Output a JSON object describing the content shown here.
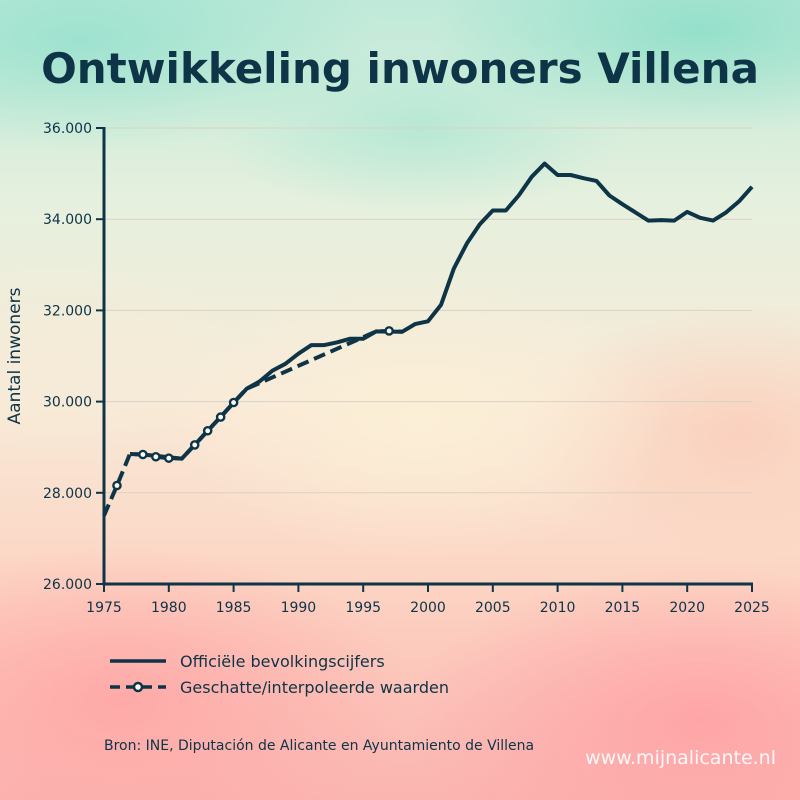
{
  "title": "Ontwikkeling inwoners Villena",
  "source": "Bron: INE, Diputación de Alicante en Ayuntamiento de Villena",
  "watermark": "www.mijnalicante.nl",
  "colors": {
    "line": "#0d3447",
    "marker_fill": "#ffffff",
    "grid": "#d9d2c4"
  },
  "chart_data": {
    "type": "line",
    "title": "Ontwikkeling inwoners Villena",
    "xlabel": "",
    "ylabel": "Aantal inwoners",
    "xlim": [
      1975,
      2025
    ],
    "ylim": [
      26000,
      36000
    ],
    "xticks": [
      1975,
      1980,
      1985,
      1990,
      1995,
      2000,
      2005,
      2010,
      2015,
      2020,
      2025
    ],
    "yticks": [
      26000,
      28000,
      30000,
      32000,
      34000,
      36000
    ],
    "ytick_labels": [
      "26.000",
      "28.000",
      "30.000",
      "32.000",
      "34.000",
      "36.000"
    ],
    "grid": "horizontal",
    "legend_position": "bottom",
    "series": [
      {
        "name": "Officiële bevolkingscijfers",
        "style": "solid",
        "x": [
          1977,
          1978,
          1981,
          1982,
          1986,
          1987,
          1988,
          1989,
          1990,
          1991,
          1992,
          1993,
          1994,
          1995,
          1996,
          1998,
          1999,
          2000,
          2001,
          2002,
          2003,
          2004,
          2005,
          2006,
          2007,
          2008,
          2009,
          2010,
          2011,
          2012,
          2013,
          2014,
          2015,
          2016,
          2017,
          2018,
          2019,
          2020,
          2021,
          2022,
          2023,
          2024,
          2025
        ],
        "values": [
          28850,
          28840,
          28750,
          29050,
          30280,
          30440,
          30680,
          30830,
          31050,
          31240,
          31240,
          31300,
          31380,
          31380,
          31540,
          31530,
          31700,
          31760,
          32120,
          32920,
          33470,
          33890,
          34190,
          34190,
          34520,
          34930,
          35220,
          34970,
          34970,
          34900,
          34840,
          34520,
          34330,
          34150,
          33970,
          33980,
          33970,
          34160,
          34030,
          33970,
          34150,
          34390,
          34710
        ]
      },
      {
        "name": "Geschatte/interpoleerde waarden",
        "style": "dashed",
        "markers": true,
        "x": [
          1975,
          1976,
          1977,
          1978,
          1979,
          1980,
          1981,
          1982,
          1983,
          1984,
          1985,
          1986,
          1996,
          1997,
          1998
        ],
        "values": [
          27500,
          28160,
          28850,
          28840,
          28790,
          28760,
          28750,
          29050,
          29360,
          29660,
          29980,
          30280,
          31540,
          31550,
          31530
        ],
        "marker_x": [
          1976,
          1978,
          1979,
          1980,
          1982,
          1983,
          1984,
          1985,
          1997
        ]
      }
    ]
  }
}
